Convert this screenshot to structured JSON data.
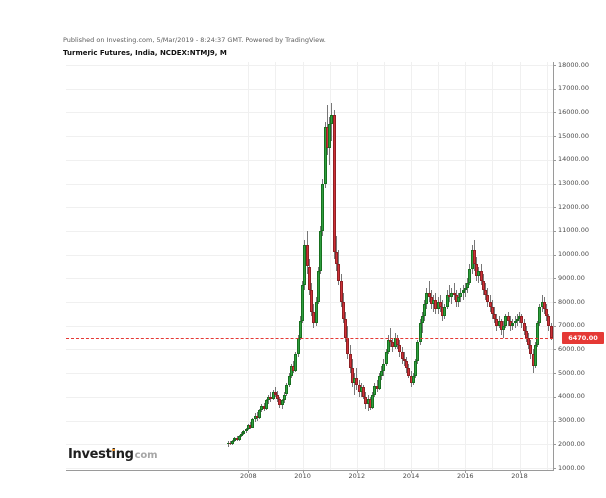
{
  "header": {
    "published_line": "Published on Investing.com, 5/Mar/2019 - 8:24:37 GMT. Powered by TradingView.",
    "title": "Turmeric Futures, India, NCDEX:NTMJ9, M"
  },
  "logo": {
    "pre": "Invest",
    "i": "i",
    "post": "ng",
    "suffix": "com",
    "dot_color": "#f7941d"
  },
  "axes": {
    "y_labels": [
      "18000.00",
      "17000.00",
      "16000.00",
      "15000.00",
      "14000.00",
      "13000.00",
      "12000.00",
      "11000.00",
      "10000.00",
      "9000.00",
      "8000.00",
      "7000.00",
      "6000.00",
      "5000.00",
      "4000.00",
      "3000.00",
      "2000.00",
      "1000.00"
    ],
    "x_labels": [
      "2008",
      "2010",
      "2012",
      "2014",
      "2016",
      "2018"
    ],
    "last_price_label": "6470.00"
  },
  "colors": {
    "up": "#2f9e3f",
    "up_border": "#17701f",
    "down": "#ce3137",
    "down_border": "#8f2024",
    "wick": "#777777",
    "grid": "#f0f0f0",
    "axis": "#9a9a9a",
    "price_line": "#e53935",
    "tag_bg": "#e53935",
    "tag_text": "#ffffff",
    "logo_dot": "#f7941d"
  },
  "chart_data": {
    "type": "candlestick",
    "title": "Turmeric Futures, India, NCDEX:NTMJ9, M",
    "symbol": "NCDEX:NTMJ9",
    "interval": "Monthly",
    "start_month": "2007-04",
    "x_tick_labels": [
      "2008",
      "2010",
      "2012",
      "2014",
      "2016",
      "2018"
    ],
    "y_axis": {
      "min": 1000,
      "max": 18000,
      "step": 1000
    },
    "grid": true,
    "last_price": 6470,
    "candles": [
      [
        2000,
        2150,
        1900,
        2050
      ],
      [
        2050,
        2120,
        1950,
        2000
      ],
      [
        2000,
        2200,
        1980,
        2150
      ],
      [
        2150,
        2300,
        2080,
        2250
      ],
      [
        2250,
        2350,
        2150,
        2200
      ],
      [
        2200,
        2400,
        2150,
        2350
      ],
      [
        2350,
        2500,
        2300,
        2450
      ],
      [
        2450,
        2600,
        2380,
        2550
      ],
      [
        2550,
        2700,
        2480,
        2650
      ],
      [
        2650,
        2850,
        2600,
        2800
      ],
      [
        2800,
        2950,
        2650,
        2700
      ],
      [
        2700,
        3100,
        2680,
        3050
      ],
      [
        3050,
        3300,
        2950,
        3200
      ],
      [
        3200,
        3350,
        3000,
        3100
      ],
      [
        3100,
        3500,
        3050,
        3450
      ],
      [
        3450,
        3700,
        3350,
        3600
      ],
      [
        3600,
        3750,
        3400,
        3500
      ],
      [
        3500,
        3900,
        3450,
        3850
      ],
      [
        3850,
        4100,
        3700,
        4000
      ],
      [
        4000,
        4200,
        3800,
        3900
      ],
      [
        3900,
        4300,
        3850,
        4200
      ],
      [
        4200,
        4400,
        4000,
        4100
      ],
      [
        4100,
        4250,
        3800,
        3900
      ],
      [
        3900,
        4000,
        3550,
        3650
      ],
      [
        3650,
        3900,
        3500,
        3850
      ],
      [
        3850,
        4200,
        3750,
        4100
      ],
      [
        4100,
        4600,
        4050,
        4500
      ],
      [
        4500,
        5000,
        4400,
        4900
      ],
      [
        4900,
        5400,
        4800,
        5300
      ],
      [
        5300,
        5500,
        5000,
        5100
      ],
      [
        5100,
        5900,
        5050,
        5800
      ],
      [
        5800,
        6600,
        5700,
        6500
      ],
      [
        6500,
        7400,
        6400,
        7200
      ],
      [
        7200,
        8900,
        7100,
        8700
      ],
      [
        8700,
        10600,
        8500,
        10400
      ],
      [
        10400,
        11000,
        9200,
        9500
      ],
      [
        9500,
        9800,
        8300,
        8500
      ],
      [
        8500,
        8800,
        7400,
        7600
      ],
      [
        7600,
        7900,
        6900,
        7100
      ],
      [
        7100,
        8200,
        7000,
        8000
      ],
      [
        8000,
        9500,
        7900,
        9300
      ],
      [
        9300,
        11200,
        9200,
        11000
      ],
      [
        11000,
        13200,
        10800,
        13000
      ],
      [
        13000,
        15600,
        12800,
        15400
      ],
      [
        15400,
        16300,
        14200,
        14500
      ],
      [
        14500,
        15800,
        13800,
        15500
      ],
      [
        15500,
        16400,
        14800,
        15900
      ],
      [
        15900,
        16100,
        9800,
        10100
      ],
      [
        10100,
        10800,
        9300,
        9600
      ],
      [
        9600,
        10200,
        8700,
        8900
      ],
      [
        8900,
        9200,
        7800,
        8000
      ],
      [
        8000,
        8400,
        7100,
        7300
      ],
      [
        7300,
        7600,
        6300,
        6500
      ],
      [
        6500,
        7000,
        5600,
        5800
      ],
      [
        5800,
        6200,
        5000,
        5200
      ],
      [
        5200,
        5600,
        4400,
        4600
      ],
      [
        4600,
        5000,
        4100,
        4800
      ],
      [
        4800,
        5200,
        4300,
        4500
      ],
      [
        4500,
        4700,
        4000,
        4200
      ],
      [
        4200,
        4600,
        4000,
        4400
      ],
      [
        4400,
        4500,
        3900,
        4000
      ],
      [
        4000,
        4200,
        3500,
        3700
      ],
      [
        3700,
        4100,
        3400,
        3900
      ],
      [
        3900,
        4000,
        3450,
        3550
      ],
      [
        3550,
        4200,
        3500,
        4100
      ],
      [
        4100,
        4600,
        4000,
        4450
      ],
      [
        4450,
        4700,
        4200,
        4350
      ],
      [
        4350,
        5000,
        4300,
        4900
      ],
      [
        4900,
        5300,
        4700,
        5100
      ],
      [
        5100,
        5600,
        4900,
        5400
      ],
      [
        5400,
        6000,
        5300,
        5900
      ],
      [
        5900,
        6600,
        5800,
        6400
      ],
      [
        6400,
        6900,
        6100,
        6300
      ],
      [
        6300,
        6500,
        5900,
        6100
      ],
      [
        6100,
        6700,
        6000,
        6500
      ],
      [
        6500,
        6600,
        6000,
        6200
      ],
      [
        6200,
        6400,
        5700,
        5900
      ],
      [
        5900,
        6100,
        5400,
        5600
      ],
      [
        5600,
        5900,
        5300,
        5500
      ],
      [
        5500,
        5700,
        5000,
        5200
      ],
      [
        5200,
        5400,
        4800,
        4900
      ],
      [
        4900,
        5100,
        4400,
        4600
      ],
      [
        4600,
        5000,
        4500,
        4900
      ],
      [
        4900,
        5600,
        4800,
        5500
      ],
      [
        5500,
        6400,
        5400,
        6300
      ],
      [
        6300,
        7300,
        6200,
        7100
      ],
      [
        7100,
        7600,
        6700,
        7400
      ],
      [
        7400,
        8100,
        7200,
        7900
      ],
      [
        7900,
        8600,
        7700,
        8400
      ],
      [
        8400,
        8900,
        8000,
        8200
      ],
      [
        8200,
        8500,
        7700,
        7900
      ],
      [
        7900,
        8300,
        7600,
        8100
      ],
      [
        8100,
        8400,
        7500,
        7700
      ],
      [
        7700,
        8200,
        7500,
        8000
      ],
      [
        8000,
        8300,
        7600,
        7800
      ],
      [
        7800,
        8100,
        7200,
        7400
      ],
      [
        7400,
        7900,
        7300,
        7800
      ],
      [
        7800,
        8500,
        7700,
        8300
      ],
      [
        8300,
        8700,
        8000,
        8200
      ],
      [
        8200,
        8600,
        7900,
        8400
      ],
      [
        8400,
        8800,
        8100,
        8300
      ],
      [
        8300,
        8500,
        7800,
        8000
      ],
      [
        8000,
        8400,
        7800,
        8200
      ],
      [
        8200,
        8600,
        8000,
        8400
      ],
      [
        8400,
        8700,
        8100,
        8500
      ],
      [
        8500,
        8800,
        8200,
        8600
      ],
      [
        8600,
        9000,
        8400,
        8800
      ],
      [
        8800,
        9600,
        8700,
        9400
      ],
      [
        9400,
        10400,
        9200,
        10200
      ],
      [
        10200,
        10600,
        9300,
        9600
      ],
      [
        9600,
        9900,
        8900,
        9100
      ],
      [
        9100,
        9500,
        8800,
        9300
      ],
      [
        9300,
        9600,
        8700,
        8900
      ],
      [
        8900,
        9200,
        8300,
        8500
      ],
      [
        8500,
        8800,
        8100,
        8300
      ],
      [
        8300,
        8600,
        7800,
        8000
      ],
      [
        8000,
        8300,
        7600,
        7800
      ],
      [
        7800,
        8100,
        7300,
        7500
      ],
      [
        7500,
        7800,
        7100,
        7300
      ],
      [
        7300,
        7500,
        6800,
        7000
      ],
      [
        7000,
        7400,
        6900,
        7200
      ],
      [
        7200,
        7300,
        6600,
        6800
      ],
      [
        6800,
        7200,
        6500,
        7000
      ],
      [
        7000,
        7500,
        6900,
        7400
      ],
      [
        7400,
        7600,
        7000,
        7200
      ],
      [
        7200,
        7400,
        6800,
        7000
      ],
      [
        7000,
        7300,
        6800,
        7100
      ],
      [
        7100,
        7400,
        6900,
        7200
      ],
      [
        7200,
        7500,
        7000,
        7300
      ],
      [
        7300,
        7600,
        7100,
        7400
      ],
      [
        7400,
        7500,
        6900,
        7100
      ],
      [
        7100,
        7300,
        6600,
        6800
      ],
      [
        6800,
        7000,
        6300,
        6500
      ],
      [
        6500,
        6700,
        6000,
        6200
      ],
      [
        6200,
        6400,
        5600,
        5800
      ],
      [
        5800,
        6000,
        5000,
        5300
      ],
      [
        5300,
        6300,
        5200,
        6200
      ],
      [
        6200,
        7200,
        6100,
        7100
      ],
      [
        7100,
        7900,
        7000,
        7800
      ],
      [
        7800,
        8300,
        7600,
        8000
      ],
      [
        8000,
        8200,
        7500,
        7700
      ],
      [
        7700,
        7900,
        7200,
        7400
      ],
      [
        7400,
        7500,
        6800,
        7000
      ],
      [
        7000,
        7100,
        6400,
        6470
      ]
    ]
  }
}
